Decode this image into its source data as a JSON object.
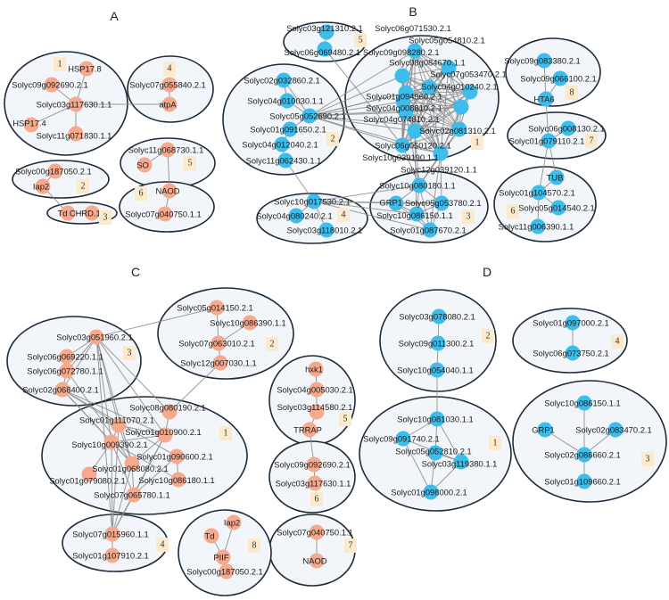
{
  "colors": {
    "salmon": "#f6a98d",
    "blue": "#3dbdec"
  },
  "panels": [
    {
      "title": "A",
      "color": "salmon",
      "clusters": [
        {
          "number": "1",
          "nodes": [
            "HSP17.8",
            "Solyc09g092690.2.1",
            "Solyc03g117630.1.1",
            "HSP17.4",
            "Solyc11g071830.1.1"
          ]
        },
        {
          "number": "2",
          "nodes": [
            "Solyc00g187050.2.1",
            "Iap2"
          ]
        },
        {
          "number": "3",
          "nodes": [
            "Td",
            "CHRD.1"
          ]
        },
        {
          "number": "4",
          "nodes": [
            "Solyc07g055840.2.1",
            "atpA"
          ]
        },
        {
          "number": "5",
          "nodes": [
            "Solyc11g068730.1.1",
            "SO"
          ]
        },
        {
          "number": "6",
          "nodes": [
            "NAOD",
            "Solyc07g040750.1.1"
          ]
        }
      ],
      "edges": [
        [
          "Solyc03g117630.1.1",
          "HSP17.8"
        ],
        [
          "Solyc03g117630.1.1",
          "Solyc09g092690.2.1"
        ],
        [
          "Solyc03g117630.1.1",
          "HSP17.4"
        ],
        [
          "Solyc03g117630.1.1",
          "Solyc11g071830.1.1"
        ],
        [
          "Solyc03g117630.1.1",
          "atpA"
        ],
        [
          "Solyc07g055840.2.1",
          "atpA"
        ],
        [
          "Solyc00g187050.2.1",
          "Iap2"
        ],
        [
          "Iap2",
          "Td"
        ],
        [
          "Td",
          "CHRD.1"
        ],
        [
          "Solyc11g068730.1.1",
          "SO"
        ],
        [
          "Solyc11g068730.1.1",
          "NAOD"
        ],
        [
          "NAOD",
          "Solyc07g040750.1.1"
        ]
      ],
      "cliques": []
    },
    {
      "title": "B",
      "color": "blue",
      "clusters": [
        {
          "number": "1",
          "nodes": [
            "Solyc06g071530.2.1",
            "Solyc05g054810.2.1",
            "Solyc09g098280.2.1",
            "Solyc01g094960.2.1",
            "Solyc08g084670.1.1",
            "Solyc07g053470.2.1",
            "Solyc04g074810.2.1",
            "Solyc04g010240.2.1",
            "Solyc04g008810.2.1",
            "Solyc06g050120.2.1",
            "Solyc02g081310.2.1",
            "Solyc10g039190.1.1",
            "Solyc12g039120.1.1"
          ]
        },
        {
          "number": "2",
          "nodes": [
            "Solyc02g032860.2.1",
            "Solyc04g010030.1.1",
            "Solyc05g052690.2.1",
            "Solyc01g091650.2.1",
            "Solyc04g012040.2.1",
            "Solyc11g062430.1.1"
          ]
        },
        {
          "number": "3",
          "nodes": [
            "Solyc10g080180.1.1",
            "GRP1",
            "Solyc05g053780.2.1",
            "Solyc10g086150.1.1",
            "Solyc01g087670.2.1"
          ]
        },
        {
          "number": "4",
          "nodes": [
            "Solyc10g017530.2.1",
            "Solyc04g080240.2.1",
            "Solyc03g118010.2.1"
          ]
        },
        {
          "number": "5",
          "nodes": [
            "Solyc03g121310.2.1",
            "Solyc06g069480.2.1"
          ]
        },
        {
          "number": "6",
          "nodes": [
            "TUB",
            "Solyc01g104570.2.1",
            "Solyc05g014540.2.1",
            "Solyc11g006390.1.1"
          ]
        },
        {
          "number": "7",
          "nodes": [
            "Solyc06g008130.2.1",
            "Solyc01g079110.2.1"
          ]
        },
        {
          "number": "8",
          "nodes": [
            "Solyc09g083380.2.1",
            "Solyc09g066100.2.1",
            "HTA6"
          ]
        }
      ],
      "edges": [
        [
          "Solyc03g121310.2.1",
          "Solyc06g069480.2.1"
        ],
        [
          "Solyc06g069480.2.1",
          "Solyc10g039190.1.1"
        ],
        [
          "Solyc02g032860.2.1",
          "Solyc04g010030.1.1"
        ],
        [
          "Solyc04g010030.1.1",
          "Solyc05g052690.2.1"
        ],
        [
          "Solyc05g052690.2.1",
          "Solyc01g091650.2.1"
        ],
        [
          "Solyc01g091650.2.1",
          "Solyc04g012040.2.1"
        ],
        [
          "Solyc04g012040.2.1",
          "Solyc11g062430.1.1"
        ],
        [
          "Solyc02g032860.2.1",
          "Solyc05g052690.2.1"
        ],
        [
          "Solyc11g062430.1.1",
          "Solyc10g017530.2.1"
        ],
        [
          "Solyc05g052690.2.1",
          "Solyc06g071530.2.1"
        ],
        [
          "Solyc05g052690.2.1",
          "Solyc09g098280.2.1"
        ],
        [
          "Solyc05g052690.2.1",
          "Solyc01g094960.2.1"
        ],
        [
          "Solyc05g052690.2.1",
          "Solyc08g084670.1.1"
        ],
        [
          "Solyc05g052690.2.1",
          "Solyc04g074810.2.1"
        ],
        [
          "Solyc05g052690.2.1",
          "Solyc04g008810.2.1"
        ],
        [
          "Solyc05g052690.2.1",
          "Solyc04g010240.2.1"
        ],
        [
          "Solyc05g052690.2.1",
          "Solyc06g050120.2.1"
        ],
        [
          "Solyc05g052690.2.1",
          "Solyc10g039190.1.1"
        ],
        [
          "Solyc05g052690.2.1",
          "Solyc12g039120.1.1"
        ],
        [
          "Solyc05g052690.2.1",
          "Solyc02g081310.2.1"
        ],
        [
          "Solyc10g017530.2.1",
          "Solyc04g080240.2.1"
        ],
        [
          "Solyc10g017530.2.1",
          "Solyc03g118010.2.1"
        ],
        [
          "Solyc10g017530.2.1",
          "Solyc10g080180.1.1"
        ],
        [
          "Solyc10g017530.2.1",
          "GRP1"
        ],
        [
          "Solyc10g017530.2.1",
          "Solyc05g053780.2.1"
        ],
        [
          "Solyc10g017530.2.1",
          "Solyc10g086150.1.1"
        ],
        [
          "Solyc10g017530.2.1",
          "Solyc01g087670.2.1"
        ],
        [
          "Solyc10g080180.1.1",
          "Solyc06g050120.2.1"
        ],
        [
          "Solyc10g080180.1.1",
          "Solyc10g039190.1.1"
        ],
        [
          "Solyc10g080180.1.1",
          "Solyc12g039120.1.1"
        ],
        [
          "Solyc10g080180.1.1",
          "Solyc04g008810.2.1"
        ],
        [
          "Solyc10g080180.1.1",
          "Solyc02g081310.2.1"
        ],
        [
          "Solyc01g087670.2.1",
          "Solyc12g039120.1.1"
        ],
        [
          "Solyc05g053780.2.1",
          "Solyc12g039120.1.1"
        ],
        [
          "Solyc10g086150.1.1",
          "Solyc06g050120.2.1"
        ],
        [
          "HTA6",
          "Solyc09g083380.2.1"
        ],
        [
          "HTA6",
          "Solyc09g066100.2.1"
        ],
        [
          "HTA6",
          "Solyc01g079110.2.1"
        ],
        [
          "Solyc06g008130.2.1",
          "Solyc01g079110.2.1"
        ],
        [
          "Solyc01g079110.2.1",
          "TUB"
        ],
        [
          "Solyc01g079110.2.1",
          "Solyc01g104570.2.1"
        ],
        [
          "TUB",
          "Solyc01g104570.2.1"
        ],
        [
          "Solyc01g104570.2.1",
          "Solyc05g014540.2.1"
        ],
        [
          "Solyc01g104570.2.1",
          "Solyc11g006390.1.1"
        ]
      ],
      "cliques": [
        [
          "Solyc06g071530.2.1",
          "Solyc05g054810.2.1",
          "Solyc09g098280.2.1",
          "Solyc01g094960.2.1",
          "Solyc08g084670.1.1",
          "Solyc07g053470.2.1",
          "Solyc04g074810.2.1",
          "Solyc04g010240.2.1",
          "Solyc04g008810.2.1",
          "Solyc06g050120.2.1",
          "Solyc02g081310.2.1",
          "Solyc10g039190.1.1",
          "Solyc12g039120.1.1"
        ],
        [
          "Solyc10g080180.1.1",
          "GRP1",
          "Solyc05g053780.2.1",
          "Solyc10g086150.1.1",
          "Solyc01g087670.2.1"
        ]
      ]
    },
    {
      "title": "C",
      "color": "salmon",
      "clusters": [
        {
          "number": "1",
          "nodes": [
            "Solyc08g080190.2.1",
            "Solyc01g111070.2.1",
            "Solyc01g010900.2.1",
            "Solyc10g009390.2.1",
            "Solyc01g090600.2.1",
            "Solyc01g068080.2.1",
            "Solyc01g079080.2.1",
            "Solyc10g086180.1.1",
            "Solyc07g065780.1.1"
          ]
        },
        {
          "number": "2",
          "nodes": [
            "Solyc05g014150.2.1",
            "Solyc10g086390.1.1",
            "Solyc07g063010.2.1",
            "Solyc12g007030.1.1"
          ]
        },
        {
          "number": "3",
          "nodes": [
            "Solyc03g051960.2.1",
            "Solyc06g069220.1.1",
            "Solyc06g072780.1.1",
            "Solyc02g068400.2.1"
          ]
        },
        {
          "number": "4",
          "nodes": [
            "Solyc07g015960.1.1",
            "Solyc01g107910.2.1"
          ]
        },
        {
          "number": "5",
          "nodes": [
            "hxk1",
            "Solyc04g005030.2.1",
            "Solyc03g114580.2.1",
            "TRRAP"
          ]
        },
        {
          "number": "6",
          "nodes": [
            "Solyc09g092690.2.1",
            "Solyc03g117630.1.1"
          ]
        },
        {
          "number": "7",
          "nodes": [
            "Solyc07g040750.1.1",
            "NAOD"
          ]
        },
        {
          "number": "8",
          "nodes": [
            "Iap2",
            "Td",
            "PIIF",
            "Solyc00g187050.2.1"
          ]
        }
      ],
      "edges": [
        [
          "Solyc05g014150.2.1",
          "Solyc03g051960.2.1"
        ],
        [
          "Solyc05g014150.2.1",
          "Solyc07g063010.2.1"
        ],
        [
          "Solyc10g086390.1.1",
          "Solyc07g063010.2.1"
        ],
        [
          "Solyc07g063010.2.1",
          "Solyc12g007030.1.1"
        ],
        [
          "Solyc12g007030.1.1",
          "Solyc08g080190.2.1"
        ],
        [
          "Solyc03g051960.2.1",
          "Solyc06g069220.1.1"
        ],
        [
          "Solyc03g051960.2.1",
          "Solyc06g072780.1.1"
        ],
        [
          "Solyc03g051960.2.1",
          "Solyc02g068400.2.1"
        ],
        [
          "Solyc06g069220.1.1",
          "Solyc06g072780.1.1"
        ],
        [
          "Solyc06g072780.1.1",
          "Solyc02g068400.2.1"
        ],
        [
          "Solyc03g051960.2.1",
          "Solyc01g111070.2.1"
        ],
        [
          "Solyc03g051960.2.1",
          "Solyc10g009390.2.1"
        ],
        [
          "Solyc03g051960.2.1",
          "Solyc01g010900.2.1"
        ],
        [
          "Solyc03g051960.2.1",
          "Solyc08g080190.2.1"
        ],
        [
          "Solyc03g051960.2.1",
          "Solyc01g068080.2.1"
        ],
        [
          "Solyc03g051960.2.1",
          "Solyc07g015960.1.1"
        ],
        [
          "Solyc02g068400.2.1",
          "Solyc01g111070.2.1"
        ],
        [
          "Solyc02g068400.2.1",
          "Solyc01g010900.2.1"
        ],
        [
          "Solyc02g068400.2.1",
          "Solyc01g068080.2.1"
        ],
        [
          "Solyc02g068400.2.1",
          "Solyc10g009390.2.1"
        ],
        [
          "Solyc02g068400.2.1",
          "Solyc01g090600.2.1"
        ],
        [
          "Solyc06g072780.1.1",
          "Solyc01g068080.2.1"
        ],
        [
          "Solyc01g111070.2.1",
          "Solyc01g010900.2.1"
        ],
        [
          "Solyc01g111070.2.1",
          "Solyc10g009390.2.1"
        ],
        [
          "Solyc01g111070.2.1",
          "Solyc01g068080.2.1"
        ],
        [
          "Solyc01g111070.2.1",
          "Solyc07g015960.1.1"
        ],
        [
          "Solyc08g080190.2.1",
          "Solyc01g010900.2.1"
        ],
        [
          "Solyc01g010900.2.1",
          "Solyc10g009390.2.1"
        ],
        [
          "Solyc01g010900.2.1",
          "Solyc01g068080.2.1"
        ],
        [
          "Solyc01g010900.2.1",
          "Solyc07g065780.1.1"
        ],
        [
          "Solyc01g010900.2.1",
          "Solyc07g015960.1.1"
        ],
        [
          "Solyc10g009390.2.1",
          "Solyc01g068080.2.1"
        ],
        [
          "Solyc10g009390.2.1",
          "Solyc01g079080.2.1"
        ],
        [
          "Solyc10g009390.2.1",
          "Solyc07g065780.1.1"
        ],
        [
          "Solyc10g009390.2.1",
          "Solyc07g015960.1.1"
        ],
        [
          "Solyc10g009390.2.1",
          "Solyc10g086180.1.1"
        ],
        [
          "Solyc01g090600.2.1",
          "Solyc10g086180.1.1"
        ],
        [
          "Solyc01g090600.2.1",
          "Solyc07g065780.1.1"
        ],
        [
          "Solyc01g068080.2.1",
          "Solyc07g065780.1.1"
        ],
        [
          "Solyc01g068080.2.1",
          "Solyc07g015960.1.1"
        ],
        [
          "Solyc07g065780.1.1",
          "Solyc07g015960.1.1"
        ],
        [
          "Solyc07g015960.1.1",
          "Solyc01g107910.2.1"
        ],
        [
          "hxk1",
          "Solyc04g005030.2.1"
        ],
        [
          "Solyc04g005030.2.1",
          "Solyc03g114580.2.1"
        ],
        [
          "Solyc03g114580.2.1",
          "TRRAP"
        ],
        [
          "TRRAP",
          "Solyc09g092690.2.1"
        ],
        [
          "Solyc09g092690.2.1",
          "Solyc03g117630.1.1"
        ],
        [
          "Solyc07g040750.1.1",
          "NAOD"
        ],
        [
          "Td",
          "PIIF"
        ],
        [
          "Iap2",
          "PIIF"
        ],
        [
          "PIIF",
          "Solyc00g187050.2.1"
        ]
      ],
      "cliques": []
    },
    {
      "title": "D",
      "color": "blue",
      "clusters": [
        {
          "number": "1",
          "nodes": [
            "Solyc10g081030.1.1",
            "Solyc09g091740.2.1",
            "Solyc05g052810.2.1",
            "Solyc03g119380.1.1",
            "Solyc01g098000.2.1"
          ]
        },
        {
          "number": "2",
          "nodes": [
            "Solyc03g078080.2.1",
            "Solyc09g011300.2.1",
            "Solyc10g054040.1.1"
          ]
        },
        {
          "number": "3",
          "nodes": [
            "Solyc10g086150.1.1",
            "GRP1",
            "Solyc02g083470.2.1",
            "Solyc02g086660.2.1",
            "Solyc01g109660.2.1"
          ]
        },
        {
          "number": "4",
          "nodes": [
            "Solyc01g097000.2.1",
            "Solyc06g073750.2.1"
          ]
        }
      ],
      "edges": [
        [
          "Solyc03g078080.2.1",
          "Solyc09g011300.2.1"
        ],
        [
          "Solyc09g011300.2.1",
          "Solyc10g054040.1.1"
        ],
        [
          "Solyc10g054040.1.1",
          "Solyc10g081030.1.1"
        ],
        [
          "Solyc10g081030.1.1",
          "Solyc09g091740.2.1"
        ],
        [
          "Solyc10g081030.1.1",
          "Solyc05g052810.2.1"
        ],
        [
          "Solyc10g081030.1.1",
          "Solyc03g119380.1.1"
        ],
        [
          "Solyc09g091740.2.1",
          "Solyc03g119380.1.1"
        ],
        [
          "Solyc09g091740.2.1",
          "Solyc01g098000.2.1"
        ],
        [
          "Solyc05g052810.2.1",
          "Solyc01g098000.2.1"
        ],
        [
          "Solyc05g052810.2.1",
          "Solyc03g119380.1.1"
        ],
        [
          "Solyc03g119380.1.1",
          "Solyc01g098000.2.1"
        ],
        [
          "Solyc02g086660.2.1",
          "Solyc10g086150.1.1"
        ],
        [
          "Solyc02g086660.2.1",
          "GRP1"
        ],
        [
          "Solyc02g086660.2.1",
          "Solyc02g083470.2.1"
        ],
        [
          "Solyc02g086660.2.1",
          "Solyc01g109660.2.1"
        ],
        [
          "Solyc01g097000.2.1",
          "Solyc06g073750.2.1"
        ]
      ],
      "cliques": []
    }
  ]
}
